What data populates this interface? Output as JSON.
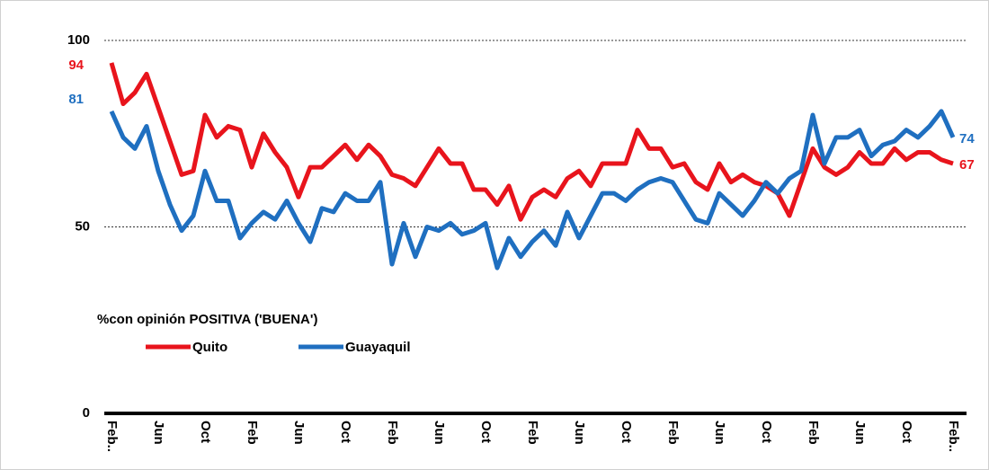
{
  "chart_data": {
    "type": "line",
    "legend_title": "%con opinión POSITIVA ('BUENA')",
    "categories": [
      "Feb..",
      null,
      null,
      null,
      "Jun",
      null,
      null,
      null,
      "Oct",
      null,
      null,
      null,
      "Feb",
      null,
      null,
      null,
      "Jun",
      null,
      null,
      null,
      "Oct",
      null,
      null,
      null,
      "Feb",
      null,
      null,
      null,
      "Jun",
      null,
      null,
      null,
      "Oct",
      null,
      null,
      null,
      "Feb",
      null,
      null,
      null,
      "Jun",
      null,
      null,
      null,
      "Oct",
      null,
      null,
      null,
      "Feb",
      null,
      null,
      null,
      "Jun",
      null,
      null,
      null,
      "Oct",
      null,
      null,
      null,
      "Feb",
      null,
      null,
      null,
      "Jun",
      null,
      null,
      null,
      "Oct",
      null,
      null,
      null,
      "Feb.."
    ],
    "series": [
      {
        "name": "Quito",
        "color": "#e8141c",
        "values": [
          94,
          83,
          86,
          91,
          82,
          73,
          64,
          65,
          80,
          74,
          77,
          76,
          66,
          75,
          70,
          66,
          58,
          66,
          66,
          69,
          72,
          68,
          72,
          69,
          64,
          63,
          61,
          66,
          71,
          67,
          67,
          60,
          60,
          56,
          61,
          52,
          58,
          60,
          58,
          63,
          65,
          61,
          67,
          67,
          67,
          76,
          71,
          71,
          66,
          67,
          62,
          60,
          67,
          62,
          64,
          62,
          61,
          59,
          53,
          62,
          71,
          66,
          64,
          66,
          70,
          67,
          67,
          71,
          68,
          70,
          70,
          68,
          67
        ]
      },
      {
        "name": "Guayaquil",
        "color": "#1f6fc0",
        "values": [
          81,
          74,
          71,
          77,
          65,
          56,
          49,
          53,
          65,
          57,
          57,
          47,
          51,
          54,
          52,
          57,
          51,
          46,
          55,
          54,
          59,
          57,
          57,
          62,
          40,
          51,
          42,
          50,
          49,
          51,
          48,
          49,
          51,
          39,
          47,
          42,
          46,
          49,
          45,
          54,
          47,
          53,
          59,
          59,
          57,
          60,
          62,
          63,
          62,
          57,
          52,
          51,
          59,
          56,
          53,
          57,
          62,
          59,
          63,
          65,
          80,
          67,
          74,
          74,
          76,
          69,
          72,
          73,
          76,
          74,
          77,
          81,
          74
        ]
      }
    ],
    "ylim": [
      0,
      100
    ],
    "yticks": [
      0,
      50,
      100
    ],
    "grid": true
  }
}
